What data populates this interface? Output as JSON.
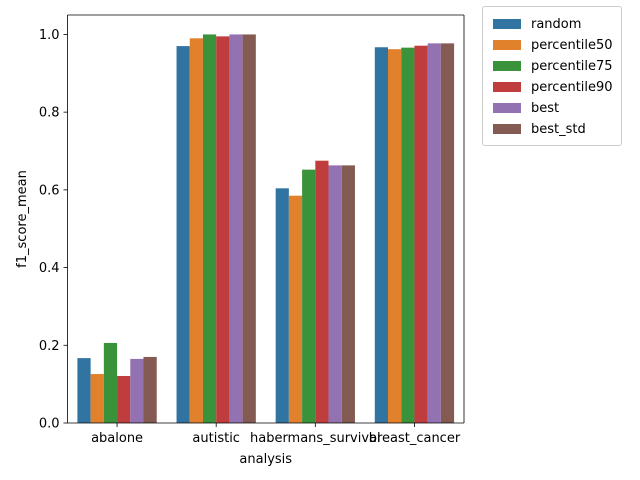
{
  "chart_data": {
    "type": "bar",
    "xlabel": "analysis",
    "ylabel": "f1_score_mean",
    "ylim": [
      0,
      1.05
    ],
    "yticks": [
      0.0,
      0.2,
      0.4,
      0.6,
      0.8,
      1.0
    ],
    "ytick_labels": [
      "0.0",
      "0.2",
      "0.4",
      "0.6",
      "0.8",
      "1.0"
    ],
    "grid": false,
    "legend_position": "outside-top-right",
    "categories": [
      "abalone",
      "autistic",
      "habermans_survival",
      "breast_cancer"
    ],
    "series": [
      {
        "name": "random",
        "color": "#3274a1",
        "values": [
          0.167,
          0.97,
          0.604,
          0.967
        ]
      },
      {
        "name": "percentile50",
        "color": "#e1812c",
        "values": [
          0.126,
          0.99,
          0.585,
          0.962
        ]
      },
      {
        "name": "percentile75",
        "color": "#3a923a",
        "values": [
          0.206,
          1.0,
          0.652,
          0.966
        ]
      },
      {
        "name": "percentile90",
        "color": "#c03d3e",
        "values": [
          0.121,
          0.995,
          0.675,
          0.971
        ]
      },
      {
        "name": "best",
        "color": "#9372b2",
        "values": [
          0.165,
          1.0,
          0.663,
          0.977
        ]
      },
      {
        "name": "best_std",
        "color": "#845b53",
        "values": [
          0.17,
          1.0,
          0.663,
          0.977
        ]
      }
    ]
  }
}
